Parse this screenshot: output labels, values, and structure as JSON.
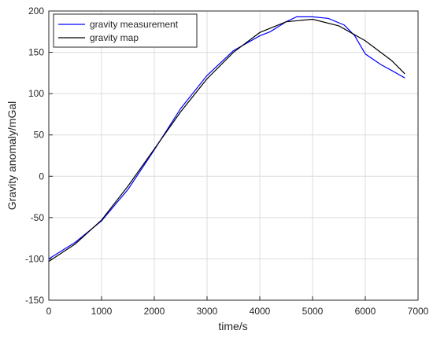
{
  "chart_data": {
    "type": "line",
    "xlabel": "time/s",
    "ylabel": "Gravity anomaly/mGal",
    "xlim": [
      0,
      7000
    ],
    "ylim": [
      -150,
      200
    ],
    "xticks": [
      0,
      1000,
      2000,
      3000,
      4000,
      5000,
      6000,
      7000
    ],
    "yticks": [
      -150,
      -100,
      -50,
      0,
      50,
      100,
      150,
      200
    ],
    "grid": true,
    "legend": "upper-left",
    "series": [
      {
        "name": "gravity measurement",
        "color": "#0000ff",
        "x": [
          0,
          500,
          1000,
          1500,
          2000,
          2500,
          3000,
          3500,
          4000,
          4200,
          4500,
          4700,
          5000,
          5300,
          5600,
          5800,
          6000,
          6300,
          6500,
          6750
        ],
        "values": [
          -100,
          -80,
          -54,
          -16,
          32,
          82,
          122,
          152,
          170,
          175,
          187,
          193,
          193,
          191,
          183,
          170,
          148,
          135,
          128,
          119
        ]
      },
      {
        "name": "gravity map",
        "color": "#000000",
        "x": [
          0,
          500,
          1000,
          1500,
          2000,
          2500,
          3000,
          3500,
          4000,
          4500,
          5000,
          5500,
          6000,
          6500,
          6750
        ],
        "values": [
          -103,
          -82,
          -53,
          -12,
          33,
          78,
          118,
          150,
          174,
          187,
          190,
          182,
          164,
          140,
          124
        ]
      }
    ]
  }
}
